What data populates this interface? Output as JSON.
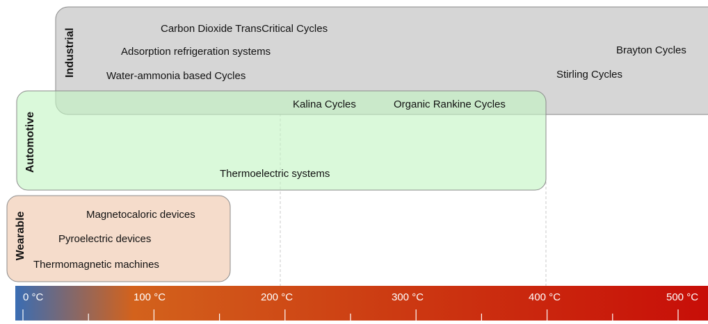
{
  "groups": [
    {
      "label": "Industrial",
      "items": [
        "Carbon Dioxide TransCritical Cycles",
        "Adsorption refrigeration systems",
        "Water-ammonia based Cycles",
        "Brayton Cycles",
        "Stirling Cycles"
      ]
    },
    {
      "label": "Automotive",
      "items": [
        "Kalina Cycles",
        "Organic Rankine Cycles",
        "Thermoelectric systems"
      ]
    },
    {
      "label": "Wearable",
      "items": [
        "Magnetocaloric devices",
        "Pyroelectric devices",
        "Thermomagnetic machines"
      ]
    }
  ],
  "scale": {
    "labels": [
      "0 °C",
      "100 °C",
      "200 °C",
      "300 °C",
      "400 °C",
      "500 °C"
    ]
  }
}
